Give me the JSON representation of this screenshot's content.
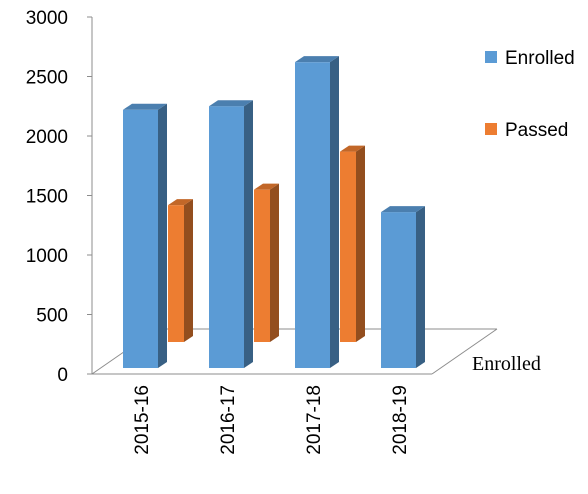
{
  "chart_data": {
    "type": "bar",
    "style": "3d-column",
    "title": "",
    "xlabel": "",
    "ylabel": "",
    "categories": [
      "2015-16",
      "2016-17",
      "2017-18",
      "2018-19"
    ],
    "series": [
      {
        "name": "Enrolled",
        "values": [
          2170,
          2200,
          2570,
          1310
        ],
        "color": "#5b9bd5"
      },
      {
        "name": "Passed",
        "values": [
          1150,
          1280,
          1600,
          null
        ],
        "color": "#ed7d31"
      }
    ],
    "depth_axis_label": "Enrolled",
    "yticks": [
      "0",
      "500",
      "1000",
      "1500",
      "2000",
      "2500",
      "3000"
    ],
    "ylim": [
      0,
      3000
    ],
    "grid": false,
    "legend_position": "right"
  }
}
